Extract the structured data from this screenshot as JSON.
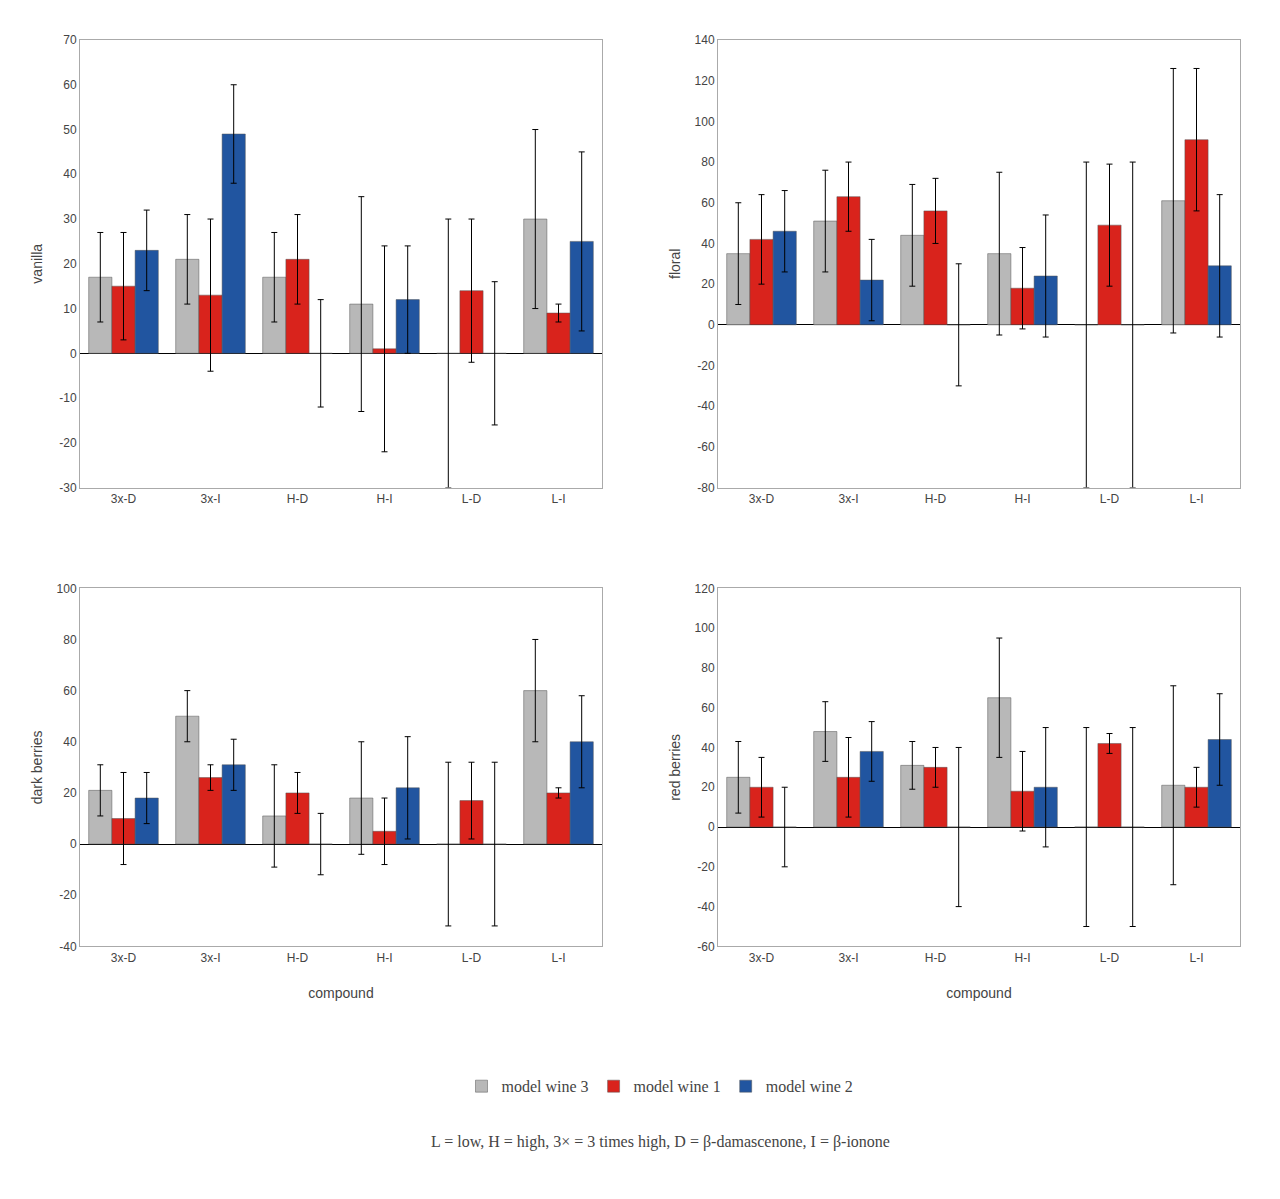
{
  "chart_data": [
    {
      "type": "bar",
      "ylabel": "vanilla",
      "categories": [
        "3x-D",
        "3x-I",
        "H-D",
        "H-I",
        "L-D",
        "L-I"
      ],
      "series": [
        {
          "name": "model wine 3",
          "color": "#b8b8b8",
          "values": [
            17,
            21,
            17,
            11,
            0,
            30
          ],
          "errors": [
            10,
            10,
            10,
            24,
            30,
            20
          ]
        },
        {
          "name": "model wine 1",
          "color": "#d9231c",
          "values": [
            15,
            13,
            21,
            1,
            14,
            9
          ],
          "errors": [
            12,
            17,
            10,
            23,
            16,
            2
          ]
        },
        {
          "name": "model wine 2",
          "color": "#2155a0",
          "values": [
            23,
            49,
            0,
            12,
            0,
            25
          ],
          "errors": [
            9,
            11,
            12,
            12,
            16,
            20
          ]
        }
      ],
      "ylim": [
        -30,
        70
      ],
      "yticks": [
        -30,
        -20,
        -10,
        0,
        10,
        20,
        30,
        40,
        50,
        60,
        70
      ],
      "grid": false,
      "legend": "bottom"
    },
    {
      "type": "bar",
      "ylabel": "floral",
      "categories": [
        "3x-D",
        "3x-I",
        "H-D",
        "H-I",
        "L-D",
        "L-I"
      ],
      "series": [
        {
          "name": "model wine 3",
          "color": "#b8b8b8",
          "values": [
            35,
            51,
            44,
            35,
            0,
            61
          ],
          "errors": [
            25,
            25,
            25,
            40,
            80,
            65
          ]
        },
        {
          "name": "model wine 1",
          "color": "#d9231c",
          "values": [
            42,
            63,
            56,
            18,
            49,
            91
          ],
          "errors": [
            22,
            17,
            16,
            20,
            30,
            35
          ]
        },
        {
          "name": "model wine 2",
          "color": "#2155a0",
          "values": [
            46,
            22,
            0,
            24,
            0,
            29
          ],
          "errors": [
            20,
            20,
            30,
            30,
            80,
            35
          ]
        }
      ],
      "ylim": [
        -80,
        140
      ],
      "yticks": [
        -80,
        -60,
        -40,
        -20,
        0,
        20,
        40,
        60,
        80,
        100,
        120,
        140
      ],
      "grid": false,
      "legend": "bottom"
    },
    {
      "type": "bar",
      "ylabel": "dark berries",
      "xlabel": "compound",
      "categories": [
        "3x-D",
        "3x-I",
        "H-D",
        "H-I",
        "L-D",
        "L-I"
      ],
      "series": [
        {
          "name": "model wine 3",
          "color": "#b8b8b8",
          "values": [
            21,
            50,
            11,
            18,
            0,
            60
          ],
          "errors": [
            10,
            10,
            20,
            22,
            32,
            20
          ]
        },
        {
          "name": "model wine 1",
          "color": "#d9231c",
          "values": [
            10,
            26,
            20,
            5,
            17,
            20
          ],
          "errors": [
            18,
            5,
            8,
            13,
            15,
            2
          ]
        },
        {
          "name": "model wine 2",
          "color": "#2155a0",
          "values": [
            18,
            31,
            0,
            22,
            0,
            40
          ],
          "errors": [
            10,
            10,
            12,
            20,
            32,
            18
          ]
        }
      ],
      "ylim": [
        -40,
        100
      ],
      "yticks": [
        -40,
        -20,
        0,
        20,
        40,
        60,
        80,
        100
      ],
      "grid": false,
      "legend": "bottom"
    },
    {
      "type": "bar",
      "ylabel": "red berries",
      "xlabel": "compound",
      "categories": [
        "3x-D",
        "3x-I",
        "H-D",
        "H-I",
        "L-D",
        "L-I"
      ],
      "series": [
        {
          "name": "model wine 3",
          "color": "#b8b8b8",
          "values": [
            25,
            48,
            31,
            65,
            0,
            21
          ],
          "errors": [
            18,
            15,
            12,
            30,
            50,
            50
          ]
        },
        {
          "name": "model wine 1",
          "color": "#d9231c",
          "values": [
            20,
            25,
            30,
            18,
            42,
            20
          ],
          "errors": [
            15,
            20,
            10,
            20,
            5,
            10
          ]
        },
        {
          "name": "model wine 2",
          "color": "#2155a0",
          "values": [
            0,
            38,
            0,
            20,
            0,
            44
          ],
          "errors": [
            20,
            15,
            40,
            30,
            50,
            23
          ]
        }
      ],
      "ylim": [
        -60,
        120
      ],
      "yticks": [
        -60,
        -40,
        -20,
        0,
        20,
        40,
        60,
        80,
        100,
        120
      ],
      "grid": false,
      "legend": "bottom",
      "annotations": [
        "L = low, H = high, 3× = 3 times high, D = β-damascenone, I = β-ionone"
      ]
    }
  ]
}
